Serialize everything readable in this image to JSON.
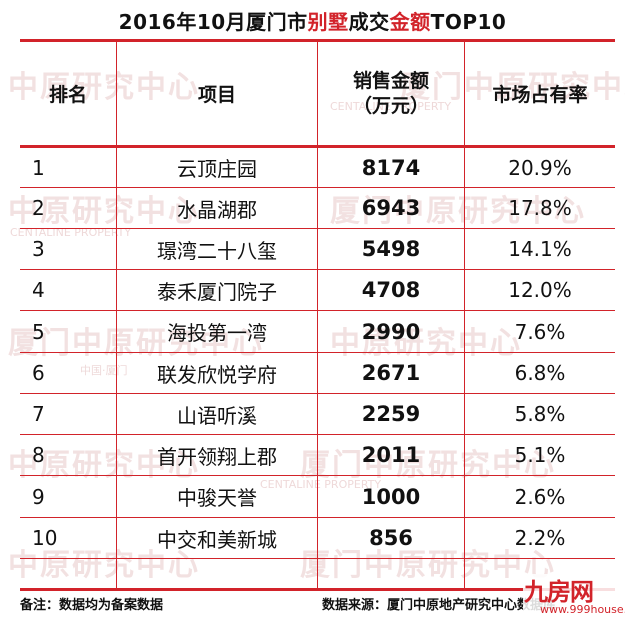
{
  "title": {
    "prefix": "2016年10月厦门市",
    "highlight1": "别墅",
    "middle": "成交",
    "highlight2": "金额",
    "suffix": "TOP10"
  },
  "table": {
    "headers": {
      "rank": "排名",
      "project": "项目",
      "amount_line1": "销售金额",
      "amount_line2": "（万元）",
      "share": "市场占有率"
    },
    "rows": [
      {
        "rank": "1",
        "project": "云顶庄园",
        "amount": "8174",
        "share": "20.9%"
      },
      {
        "rank": "2",
        "project": "水晶湖郡",
        "amount": "6943",
        "share": "17.8%"
      },
      {
        "rank": "3",
        "project": "璟湾二十八玺",
        "amount": "5498",
        "share": "14.1%"
      },
      {
        "rank": "4",
        "project": "泰禾厦门院子",
        "amount": "4708",
        "share": "12.0%"
      },
      {
        "rank": "5",
        "project": "海投第一湾",
        "amount": "2990",
        "share": "7.6%"
      },
      {
        "rank": "6",
        "project": "联发欣悦学府",
        "amount": "2671",
        "share": "6.8%"
      },
      {
        "rank": "7",
        "project": "山语听溪",
        "amount": "2259",
        "share": "5.8%"
      },
      {
        "rank": "8",
        "project": "首开领翔上郡",
        "amount": "2011",
        "share": "5.1%"
      },
      {
        "rank": "9",
        "project": "中骏天誉",
        "amount": "1000",
        "share": "2.6%"
      },
      {
        "rank": "10",
        "project": "中交和美新城",
        "amount": "856",
        "share": "2.2%"
      }
    ]
  },
  "footer": {
    "note": "备注：数据均为备案数据",
    "source": "数据来源：厦门中原地产研究中心数据库"
  },
  "watermark": {
    "text_cn": "中原研究中心",
    "text_xm": "厦门中原研究中心",
    "text_en": "CENTALINE PROPERTY",
    "text_small": "中国·厦门"
  },
  "logo": {
    "text": "九房网",
    "url": "www.999house.com"
  },
  "colors": {
    "accent": "#d2232a",
    "watermark": "#e8c9c9"
  }
}
